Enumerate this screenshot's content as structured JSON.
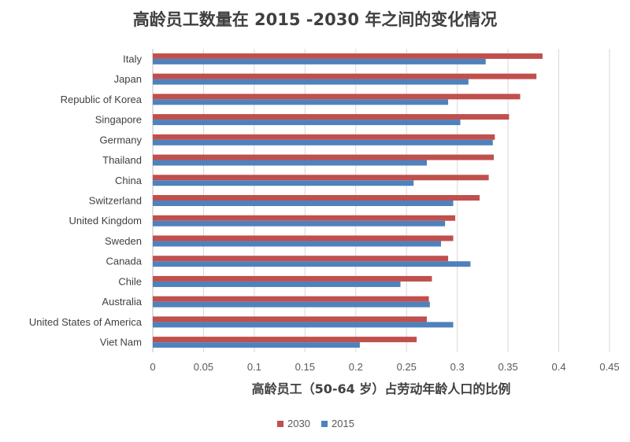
{
  "chart_data": {
    "type": "bar",
    "orientation": "horizontal",
    "title": "高龄员工数量在 2015 -2030 年之间的变化情况",
    "xlabel": "高龄员工（50-64 岁）占劳动年龄人口的比例",
    "ylabel": "",
    "xlim": [
      0,
      0.45
    ],
    "x_ticks": [
      "0",
      "0.05",
      "0.1",
      "0.15",
      "0.2",
      "0.25",
      "0.3",
      "0.35",
      "0.4",
      "0.45"
    ],
    "grid": "vertical",
    "legend_position": "bottom",
    "categories": [
      "Italy",
      "Japan",
      "Republic of Korea",
      "Singapore",
      "Germany",
      "Thailand",
      "China",
      "Switzerland",
      "United Kingdom",
      "Sweden",
      "Canada",
      "Chile",
      "Australia",
      "United States of America",
      "Viet Nam"
    ],
    "series": [
      {
        "name": "2030",
        "color": "#c0504d",
        "values": [
          0.384,
          0.378,
          0.362,
          0.351,
          0.337,
          0.336,
          0.331,
          0.322,
          0.298,
          0.296,
          0.291,
          0.275,
          0.272,
          0.27,
          0.26
        ]
      },
      {
        "name": "2015",
        "color": "#4f81bd",
        "values": [
          0.328,
          0.311,
          0.291,
          0.303,
          0.335,
          0.27,
          0.257,
          0.296,
          0.288,
          0.284,
          0.313,
          0.244,
          0.273,
          0.296,
          0.204
        ]
      }
    ]
  }
}
